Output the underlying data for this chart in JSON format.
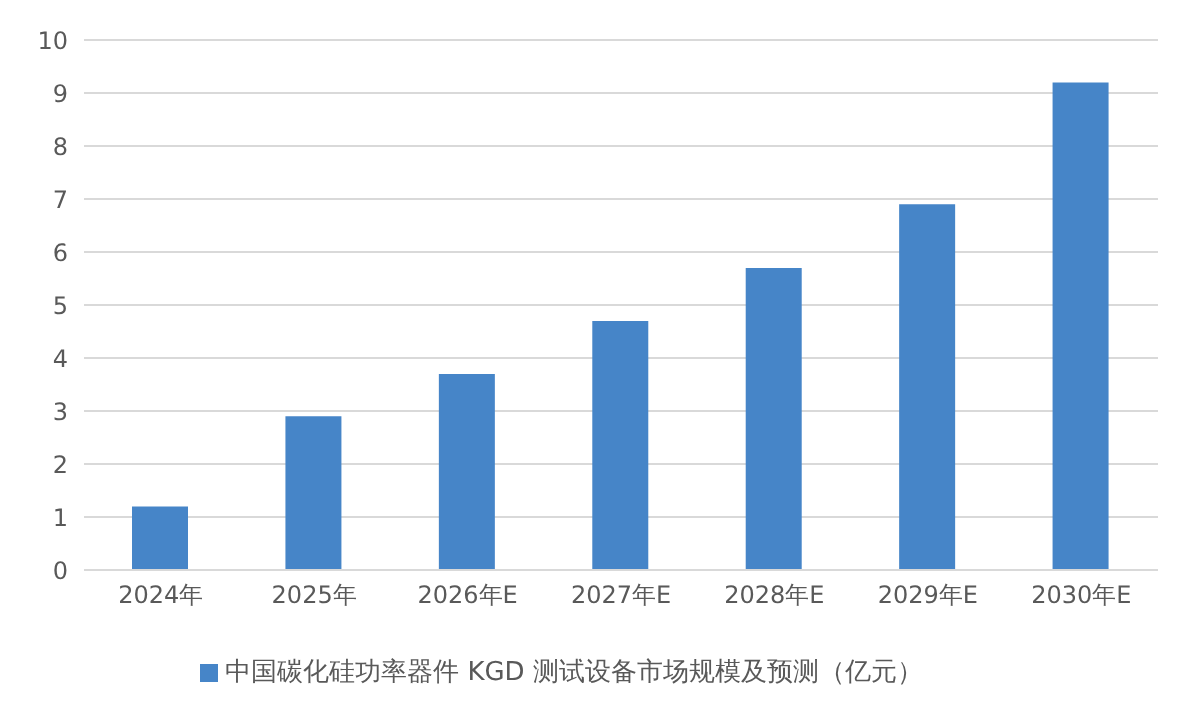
{
  "chart_data": {
    "type": "bar",
    "categories": [
      "2024年",
      "2025年",
      "2026年E",
      "2027年E",
      "2028年E",
      "2029年E",
      "2030年E"
    ],
    "series": [
      {
        "name": "中国碳化硅功率器件 KGD 测试设备市场规模及预测（亿元）",
        "color": "#4685c8",
        "values": [
          1.2,
          2.9,
          3.7,
          4.7,
          5.7,
          6.9,
          9.2
        ]
      }
    ],
    "ylim": [
      0,
      10
    ],
    "yticks": [
      0,
      1,
      2,
      3,
      4,
      5,
      6,
      7,
      8,
      9,
      10
    ],
    "grid": "y",
    "legend": "bottom"
  }
}
